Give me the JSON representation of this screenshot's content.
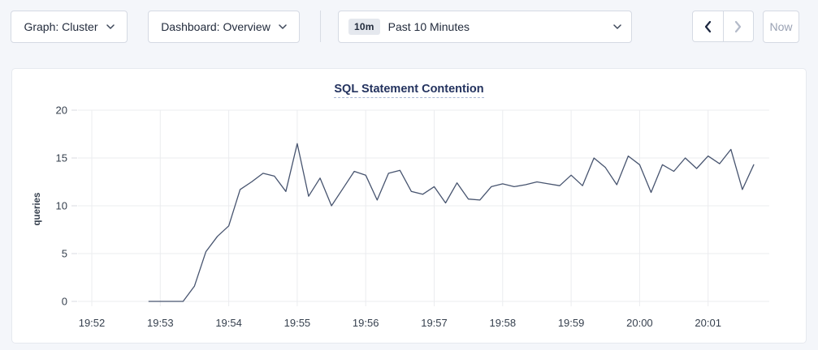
{
  "toolbar": {
    "graph_selector": {
      "label": "Graph: Cluster"
    },
    "dashboard_selector": {
      "label": "Dashboard: Overview"
    },
    "time_range": {
      "badge": "10m",
      "label": "Past 10 Minutes"
    },
    "now_button": {
      "label": "Now"
    }
  },
  "chart_data": {
    "type": "line",
    "title": "SQL Statement Contention",
    "ylabel": "queries",
    "ylim": [
      0,
      20
    ],
    "yticks": [
      0,
      5,
      10,
      15,
      20
    ],
    "x_tick_labels": [
      "19:52",
      "19:53",
      "19:54",
      "19:55",
      "19:56",
      "19:57",
      "19:58",
      "19:59",
      "20:00",
      "20:01"
    ],
    "start_offset_seconds": 50,
    "interval_seconds": 10,
    "grid": true,
    "legend": "none",
    "series": [
      {
        "name": "queries",
        "values": [
          0,
          0,
          0,
          0,
          1.6,
          5.2,
          6.8,
          7.9,
          11.7,
          12.5,
          13.4,
          13.1,
          11.5,
          16.5,
          11.0,
          12.9,
          10.0,
          11.8,
          13.6,
          13.2,
          10.6,
          13.4,
          13.7,
          11.5,
          11.2,
          12.0,
          10.3,
          12.4,
          10.7,
          10.6,
          12.0,
          12.3,
          12.0,
          12.2,
          12.5,
          12.3,
          12.1,
          13.2,
          12.1,
          15.0,
          14.0,
          12.2,
          15.2,
          14.3,
          11.4,
          14.3,
          13.6,
          15.0,
          13.9,
          15.2,
          14.4,
          15.9,
          11.7,
          14.3
        ]
      }
    ],
    "colors": {
      "line": "#47546f",
      "grid": "#ebecef",
      "tick_dash": "#d8dbe0",
      "axis_text": "#36404e",
      "title": "#24335f",
      "title_underline": "#a9b7d4"
    }
  }
}
